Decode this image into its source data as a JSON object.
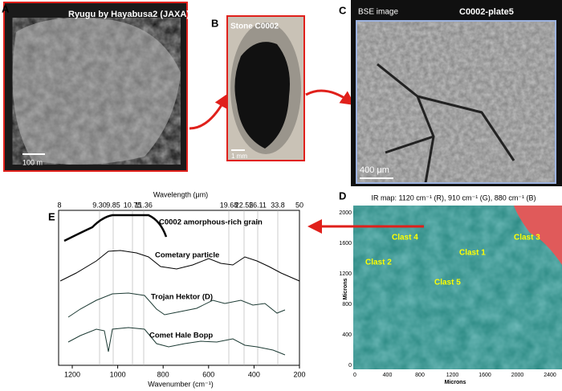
{
  "panels": {
    "a": {
      "label": "A",
      "caption": "Ryugu by Hayabusa2 (JAXA)",
      "scale": "100 m"
    },
    "b": {
      "label": "B",
      "caption": "Stone C0002",
      "scale": "1 mm"
    },
    "c": {
      "label": "C",
      "caption": "BSE image",
      "sample": "C0002-plate5",
      "scale": "400 μm"
    },
    "d": {
      "label": "D",
      "title": "IR map: 1120 cm⁻¹ (R), 910 cm⁻¹ (G), 880 cm⁻¹ (B)",
      "y_label": "Microns",
      "x_label": "Microns",
      "y_ticks": [
        "2000",
        "1600",
        "1200",
        "800",
        "400",
        "0"
      ],
      "x_ticks": [
        "0",
        "400",
        "800",
        "1200",
        "1600",
        "2000",
        "2400"
      ],
      "clasts": [
        "Clast 4",
        "Clast 3",
        "Clast 2",
        "Clast 1",
        "Clast 5"
      ]
    },
    "e": {
      "label": "E",
      "top_axis_label": "Wavelength (μm)",
      "top_ticks": [
        "8",
        "9.30",
        "9.85",
        "10.75",
        "11.36",
        "19.68",
        "22.55",
        "26.11",
        "33.8",
        "50"
      ],
      "bottom_ticks": [
        "1200",
        "1000",
        "800",
        "600",
        "400",
        "200"
      ],
      "x_label": "Wavenumber (cm⁻¹)",
      "spectra": [
        "C0002 amorphous-rich grain",
        "Cometary particle",
        "Trojan Hektor (D)",
        "Comet Hale Bopp"
      ]
    }
  }
}
